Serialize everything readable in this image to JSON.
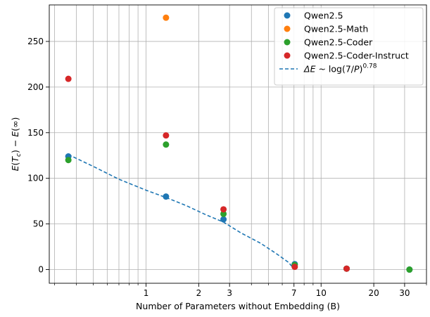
{
  "chart_data": {
    "type": "scatter",
    "xlabel": "Number of Parameters without Embedding (B)",
    "ylabel_parts": {
      "E": "E",
      "T": "T",
      "c": "c",
      "minus": " − ",
      "E2": "E",
      "inf": "∞"
    },
    "xscale": "log",
    "xlim": [
      0.28,
      40
    ],
    "ylim": [
      -15,
      290
    ],
    "xticks_major": [
      {
        "value": 1,
        "label": "1"
      },
      {
        "value": 2,
        "label": "2"
      },
      {
        "value": 3,
        "label": "3"
      },
      {
        "value": 7,
        "label": "7"
      },
      {
        "value": 10,
        "label": "10"
      },
      {
        "value": 20,
        "label": "20"
      },
      {
        "value": 30,
        "label": "30"
      }
    ],
    "xgrid_minor": [
      0.3,
      0.4,
      0.5,
      0.6,
      0.7,
      0.8,
      0.9,
      4,
      5,
      6,
      8,
      9,
      40
    ],
    "xticks_minor_only": [
      0.3,
      0.4,
      0.5,
      0.6,
      0.7,
      0.8,
      0.9,
      4,
      5,
      6,
      8,
      9,
      40
    ],
    "yticks": [
      0,
      50,
      100,
      150,
      200,
      250
    ],
    "grid": true,
    "legend_position": "top-right",
    "series": [
      {
        "name": "Qwen2.5",
        "color": "#1f77b4",
        "x": [
          0.36,
          1.3,
          2.77,
          7.07,
          13.99,
          31.98
        ],
        "y": [
          124,
          80,
          55,
          6,
          1,
          0
        ]
      },
      {
        "name": "Qwen2.5-Math",
        "color": "#ff7f0e",
        "x": [
          1.3
        ],
        "y": [
          276
        ]
      },
      {
        "name": "Qwen2.5-Coder",
        "color": "#2ca02c",
        "x": [
          0.36,
          1.3,
          2.77,
          7.07,
          13.99,
          31.98
        ],
        "y": [
          120,
          137,
          61,
          5,
          1,
          0
        ]
      },
      {
        "name": "Qwen2.5-Coder-Instruct",
        "color": "#d62728",
        "x": [
          0.36,
          1.3,
          2.77,
          7.07,
          13.99
        ],
        "y": [
          209,
          147,
          66,
          3,
          1
        ]
      }
    ],
    "fit_line": {
      "name_parts": {
        "delta": "Δ",
        "E": "E",
        "rest": " ~ log(7/",
        "P": "P",
        "close": ")",
        "exp": "0.78"
      },
      "color": "#1f77b4",
      "style": "dashed",
      "x": [
        0.36,
        0.5,
        0.7,
        1.0,
        1.3,
        1.7,
        2.2,
        2.77,
        3.5,
        4.5,
        5.5,
        6.5,
        7.0
      ],
      "y": [
        126,
        113,
        99,
        87,
        79,
        70,
        60,
        52,
        40,
        29,
        18,
        8,
        1
      ]
    }
  }
}
